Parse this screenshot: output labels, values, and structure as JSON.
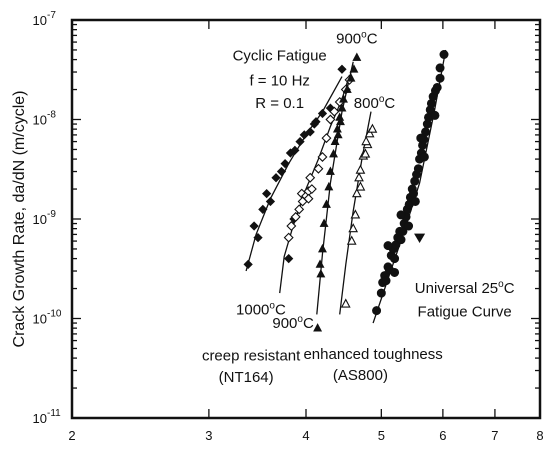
{
  "chart_data": {
    "type": "scatter",
    "xscale": "log",
    "yscale": "log",
    "xlim": [
      2,
      8
    ],
    "ylim": [
      1e-11,
      1e-07
    ],
    "xticks": [
      {
        "value": 2,
        "label": "2"
      },
      {
        "value": 3,
        "label": "3"
      },
      {
        "value": 4,
        "label": "4"
      },
      {
        "value": 5,
        "label": "5"
      },
      {
        "value": 6,
        "label": "6"
      },
      {
        "value": 7,
        "label": "7"
      },
      {
        "value": 8,
        "label": "8"
      }
    ],
    "yticks": [
      {
        "value": 1e-11,
        "mant": "10",
        "exp": "-11"
      },
      {
        "value": 1e-10,
        "mant": "10",
        "exp": "-10"
      },
      {
        "value": 1e-09,
        "mant": "10",
        "exp": "-9"
      },
      {
        "value": 1e-08,
        "mant": "10",
        "exp": "-8"
      },
      {
        "value": 1e-07,
        "mant": "10",
        "exp": "-7"
      }
    ],
    "ylabel": "Crack Growth Rate, da/dN (m/cycle)",
    "xlabel": "",
    "annotations": [
      {
        "id": "cond1",
        "text": "Cyclic Fatigue",
        "x": 3.7,
        "y": 3.9e-08
      },
      {
        "id": "cond2",
        "text": "f = 10 Hz",
        "x": 3.7,
        "y": 2.2e-08
      },
      {
        "id": "cond3",
        "text": "R = 0.1",
        "x": 3.7,
        "y": 1.3e-08
      },
      {
        "id": "l900top",
        "text": "900",
        "deg": "o",
        "unit": "C",
        "x": 4.65,
        "y": 5.8e-08
      },
      {
        "id": "l800",
        "text": "800",
        "deg": "o",
        "unit": "C",
        "x": 4.9,
        "y": 1.3e-08
      },
      {
        "id": "l1000",
        "text": "1000",
        "deg": "o",
        "unit": "C",
        "x": 3.5,
        "y": 1.1e-10
      },
      {
        "id": "l900low",
        "text": "900",
        "deg": "o",
        "unit": "C",
        "x": 3.85,
        "y": 8e-11
      },
      {
        "id": "creep",
        "text": "creep  resistant",
        "x": 3.4,
        "y": 3.8e-11
      },
      {
        "id": "nt164",
        "text": "(NT164)",
        "x": 3.35,
        "y": 2.3e-11
      },
      {
        "id": "tough",
        "text": "enhanced toughness",
        "x": 4.88,
        "y": 3.9e-11
      },
      {
        "id": "as800",
        "text": "(AS800)",
        "x": 4.7,
        "y": 2.4e-11
      },
      {
        "id": "univ1",
        "text": "Universal 25",
        "deg": "o",
        "unit": "C",
        "x": 6.4,
        "y": 1.8e-10
      },
      {
        "id": "univ2",
        "text": "Fatigue Curve",
        "x": 6.4,
        "y": 1.05e-10
      }
    ],
    "series": [
      {
        "marker": "diamond-filled",
        "points": [
          [
            3.37,
            3.5e-10
          ],
          [
            3.43,
            8.5e-10
          ],
          [
            3.47,
            6.5e-10
          ],
          [
            3.52,
            1.25e-09
          ],
          [
            3.56,
            1.8e-09
          ],
          [
            3.6,
            1.5e-09
          ],
          [
            3.66,
            2.6e-09
          ],
          [
            3.72,
            3e-09
          ],
          [
            3.76,
            3.6e-09
          ],
          [
            3.82,
            4.6e-09
          ],
          [
            3.87,
            4.9e-09
          ],
          [
            3.93,
            6e-09
          ],
          [
            3.98,
            7e-09
          ],
          [
            4.05,
            7.5e-09
          ],
          [
            4.12,
            9.5e-09
          ],
          [
            4.2,
            1.15e-08
          ],
          [
            4.3,
            1.3e-08
          ],
          [
            3.8,
            4e-10
          ],
          [
            3.86,
            1e-09
          ],
          [
            4.1,
            9e-09
          ],
          [
            4.45,
            3.2e-08
          ]
        ]
      },
      {
        "marker": "diamond-open",
        "points": [
          [
            3.8,
            6.5e-10
          ],
          [
            3.83,
            8.5e-10
          ],
          [
            3.88,
            1.05e-09
          ],
          [
            3.92,
            1.25e-09
          ],
          [
            3.96,
            1.5e-09
          ],
          [
            3.95,
            1.8e-09
          ],
          [
            4.0,
            1.7e-09
          ],
          [
            4.03,
            1.9e-09
          ],
          [
            4.07,
            2e-09
          ],
          [
            4.03,
            1.6e-09
          ],
          [
            4.05,
            2.6e-09
          ],
          [
            4.15,
            3.2e-09
          ],
          [
            4.2,
            4.2e-09
          ],
          [
            4.25,
            6.5e-09
          ],
          [
            4.3,
            1e-08
          ],
          [
            4.35,
            1.2e-08
          ],
          [
            4.42,
            1.5e-08
          ],
          [
            4.5,
            2e-08
          ],
          [
            4.55,
            2.5e-08
          ]
        ]
      },
      {
        "marker": "triangle-filled",
        "points": [
          [
            4.14,
            8e-11
          ],
          [
            4.18,
            2.8e-10
          ],
          [
            4.17,
            3.5e-10
          ],
          [
            4.2,
            5e-10
          ],
          [
            4.22,
            9e-10
          ],
          [
            4.25,
            1.4e-09
          ],
          [
            4.28,
            2.1e-09
          ],
          [
            4.3,
            3e-09
          ],
          [
            4.34,
            4.5e-09
          ],
          [
            4.36,
            6e-09
          ],
          [
            4.39,
            8e-09
          ],
          [
            4.42,
            1.05e-08
          ],
          [
            4.45,
            1.3e-08
          ],
          [
            4.47,
            1.6e-08
          ],
          [
            4.52,
            2e-08
          ],
          [
            4.57,
            2.6e-08
          ],
          [
            4.61,
            3.2e-08
          ],
          [
            4.65,
            4.2e-08
          ],
          [
            4.4,
            7e-09
          ],
          [
            4.43,
            9.5e-09
          ]
        ]
      },
      {
        "marker": "triangle-open",
        "points": [
          [
            4.5,
            1.4e-10
          ],
          [
            4.58,
            6e-10
          ],
          [
            4.6,
            8e-10
          ],
          [
            4.63,
            1.1e-09
          ],
          [
            4.65,
            1.8e-09
          ],
          [
            4.68,
            2.6e-09
          ],
          [
            4.7,
            3.1e-09
          ],
          [
            4.74,
            4.3e-09
          ],
          [
            4.77,
            4.5e-09
          ],
          [
            4.8,
            5.6e-09
          ],
          [
            4.83,
            7.2e-09
          ],
          [
            4.87,
            8e-09
          ],
          [
            4.7,
            2.1e-09
          ],
          [
            4.78,
            6e-09
          ]
        ]
      },
      {
        "marker": "circle-filled",
        "points": [
          [
            4.93,
            1.2e-10
          ],
          [
            5.0,
            1.8e-10
          ],
          [
            5.02,
            2.3e-10
          ],
          [
            5.05,
            2.7e-10
          ],
          [
            5.07,
            2.4e-10
          ],
          [
            5.1,
            3.3e-10
          ],
          [
            5.12,
            3.1e-10
          ],
          [
            5.15,
            4.3e-10
          ],
          [
            5.18,
            5e-10
          ],
          [
            5.2,
            4e-10
          ],
          [
            5.22,
            5.5e-10
          ],
          [
            5.25,
            6.5e-10
          ],
          [
            5.28,
            7.5e-10
          ],
          [
            5.3,
            6.2e-10
          ],
          [
            5.33,
            7.5e-10
          ],
          [
            5.35,
            9e-10
          ],
          [
            5.38,
            1.05e-09
          ],
          [
            5.4,
            1.25e-09
          ],
          [
            5.43,
            1.4e-09
          ],
          [
            5.45,
            1.65e-09
          ],
          [
            5.48,
            2e-09
          ],
          [
            5.5,
            1.8e-09
          ],
          [
            5.52,
            2.4e-09
          ],
          [
            5.55,
            2.8e-09
          ],
          [
            5.58,
            3.2e-09
          ],
          [
            5.6,
            4e-09
          ],
          [
            5.63,
            4.6e-09
          ],
          [
            5.65,
            5.5e-09
          ],
          [
            5.67,
            6.3e-09
          ],
          [
            5.7,
            7.5e-09
          ],
          [
            5.73,
            9e-09
          ],
          [
            5.75,
            1.05e-08
          ],
          [
            5.78,
            1.25e-08
          ],
          [
            5.8,
            1.45e-08
          ],
          [
            5.83,
            1.7e-08
          ],
          [
            5.87,
            1.95e-08
          ],
          [
            5.9,
            2.1e-08
          ],
          [
            5.95,
            3.3e-08
          ],
          [
            6.02,
            4.5e-08
          ],
          [
            5.2,
            2.9e-10
          ],
          [
            5.3,
            1.1e-09
          ],
          [
            5.42,
            8.5e-10
          ],
          [
            5.53,
            1.5e-09
          ],
          [
            5.68,
            4.2e-09
          ],
          [
            5.1,
            5.4e-10
          ],
          [
            5.62,
            6.5e-09
          ],
          [
            5.86,
            1.1e-08
          ],
          [
            5.95,
            2.6e-08
          ]
        ]
      },
      {
        "marker": "triangle-down-filled",
        "points": [
          [
            5.6,
            6.5e-10
          ]
        ]
      }
    ],
    "curves": [
      {
        "points": [
          [
            3.35,
            3e-10
          ],
          [
            3.45,
            7e-10
          ],
          [
            3.6,
            1.6e-09
          ],
          [
            3.8,
            3.6e-09
          ],
          [
            4.0,
            7e-09
          ],
          [
            4.2,
            1.2e-08
          ],
          [
            4.45,
            2.7e-08
          ]
        ]
      },
      {
        "points": [
          [
            3.7,
            1.8e-10
          ],
          [
            3.75,
            4.2e-10
          ],
          [
            3.85,
            8.5e-10
          ],
          [
            4.0,
            2e-09
          ],
          [
            4.15,
            4e-09
          ],
          [
            4.3,
            8.5e-09
          ],
          [
            4.45,
            1.6e-08
          ],
          [
            4.55,
            2.8e-08
          ]
        ]
      },
      {
        "points": [
          [
            4.13,
            1.1e-10
          ],
          [
            4.2,
            4.5e-10
          ],
          [
            4.3,
            2.3e-09
          ],
          [
            4.45,
            1.2e-08
          ],
          [
            4.6,
            3.8e-08
          ]
        ]
      },
      {
        "points": [
          [
            4.42,
            1.1e-10
          ],
          [
            4.5,
            3.5e-10
          ],
          [
            4.6,
            1.2e-09
          ],
          [
            4.72,
            4e-09
          ],
          [
            4.85,
            1.2e-08
          ]
        ]
      },
      {
        "points": [
          [
            4.88,
            9e-11
          ],
          [
            5.1,
            2.5e-10
          ],
          [
            5.35,
            7.5e-10
          ],
          [
            5.6,
            2.3e-09
          ],
          [
            5.85,
            1.2e-08
          ],
          [
            6.05,
            5e-08
          ]
        ]
      }
    ]
  }
}
